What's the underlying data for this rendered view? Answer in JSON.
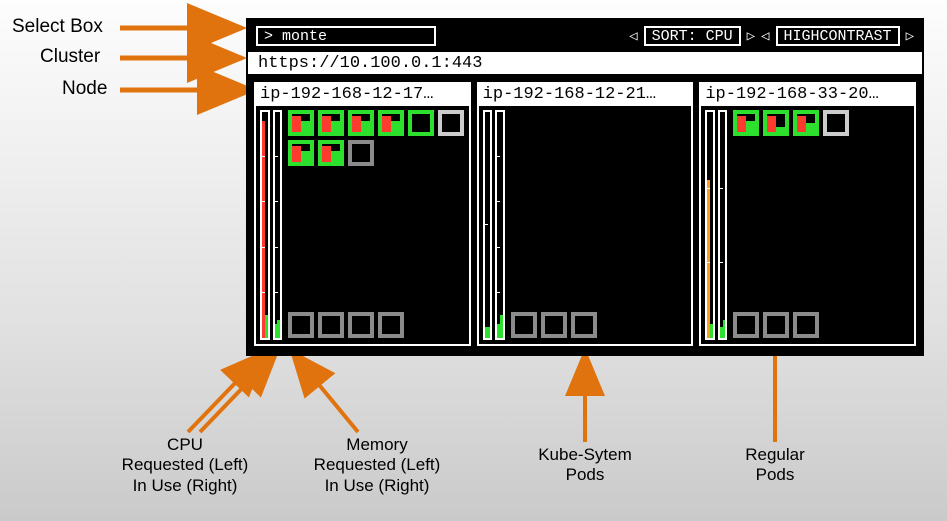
{
  "colors": {
    "arrow": "#e0730d",
    "green": "#2de02d",
    "white": "#ffffff",
    "grey": "#8b8b8b",
    "red": "#ff3b2f",
    "orange": "#ff9d1f",
    "black": "#000000"
  },
  "annotations": {
    "select_box": "Select Box",
    "cluster": "Cluster",
    "node": "Node",
    "cpu": "CPU\nRequested (Left)\nIn Use (Right)",
    "memory": "Memory\nRequested (Left)\nIn Use (Right)",
    "kube": "Kube-Sytem\nPods",
    "regular": "Regular\nPods"
  },
  "topbar": {
    "select_value": "> monte",
    "sort_label": "SORT: CPU",
    "contrast_label": "HIGHCONTRAST"
  },
  "cluster_url": "https://10.100.0.1:443",
  "nodes": [
    {
      "name": "ip-192-168-12-17…",
      "cpu": {
        "req_pct": 96,
        "use_pct": 10,
        "req_color": "#ff3b2f",
        "use_color": "#2de02d",
        "ticks": [
          20,
          40,
          60,
          80
        ]
      },
      "mem": {
        "req_pct": 6,
        "use_pct": 8,
        "req_color": "#2de02d",
        "use_color": "#2de02d",
        "ticks": [
          20,
          40,
          60,
          80
        ]
      },
      "top_pods": [
        {
          "border": "#2de02d",
          "left_h": 88,
          "left_c": "#ff3b2f",
          "right_h": 60,
          "right_c": "#2de02d"
        },
        {
          "border": "#2de02d",
          "left_h": 88,
          "left_c": "#ff3b2f",
          "right_h": 60,
          "right_c": "#2de02d"
        },
        {
          "border": "#2de02d",
          "left_h": 88,
          "left_c": "#ff3b2f",
          "right_h": 60,
          "right_c": "#2de02d"
        },
        {
          "border": "#2de02d",
          "left_h": 88,
          "left_c": "#ff3b2f",
          "right_h": 60,
          "right_c": "#2de02d"
        },
        {
          "border": "#2de02d",
          "left_h": 0,
          "left_c": "#ff3b2f",
          "right_h": 0,
          "right_c": "#2de02d"
        },
        {
          "border": "#cccccc",
          "left_h": 0,
          "left_c": "#ff3b2f",
          "right_h": 0,
          "right_c": "#2de02d"
        }
      ],
      "top_pods_row2": [
        {
          "border": "#2de02d",
          "left_h": 88,
          "left_c": "#ff3b2f",
          "right_h": 60,
          "right_c": "#2de02d"
        },
        {
          "border": "#2de02d",
          "left_h": 88,
          "left_c": "#ff3b2f",
          "right_h": 60,
          "right_c": "#2de02d"
        },
        {
          "border": "#8b8b8b",
          "left_h": 0,
          "left_c": "#ff3b2f",
          "right_h": 0,
          "right_c": "#2de02d"
        }
      ],
      "bottom_pods": [
        {
          "border": "#8b8b8b"
        },
        {
          "border": "#8b8b8b"
        },
        {
          "border": "#8b8b8b"
        },
        {
          "border": "#8b8b8b"
        }
      ]
    },
    {
      "name": "ip-192-168-12-21…",
      "cpu": {
        "req_pct": 5,
        "use_pct": 5,
        "req_color": "#2de02d",
        "use_color": "#2de02d",
        "ticks": [
          50
        ]
      },
      "mem": {
        "req_pct": 6,
        "use_pct": 10,
        "req_color": "#2de02d",
        "use_color": "#2de02d",
        "ticks": [
          20,
          40,
          60,
          80
        ]
      },
      "top_pods": [],
      "top_pods_row2": [],
      "bottom_pods": [
        {
          "border": "#8b8b8b"
        },
        {
          "border": "#8b8b8b"
        },
        {
          "border": "#8b8b8b"
        }
      ]
    },
    {
      "name": "ip-192-168-33-20…",
      "cpu": {
        "req_pct": 70,
        "use_pct": 6,
        "req_color": "#ff9d1f",
        "use_color": "#2de02d",
        "ticks": [
          33,
          66
        ]
      },
      "mem": {
        "req_pct": 5,
        "use_pct": 8,
        "req_color": "#2de02d",
        "use_color": "#2de02d",
        "ticks": [
          33,
          66
        ]
      },
      "top_pods": [
        {
          "border": "#2de02d",
          "left_h": 88,
          "left_c": "#ff3b2f",
          "right_h": 60,
          "right_c": "#2de02d"
        },
        {
          "border": "#2de02d",
          "left_h": 88,
          "left_c": "#ff3b2f",
          "right_h": 30,
          "right_c": "#2de02d"
        },
        {
          "border": "#2de02d",
          "left_h": 88,
          "left_c": "#ff3b2f",
          "right_h": 50,
          "right_c": "#2de02d"
        },
        {
          "border": "#cccccc",
          "left_h": 0,
          "left_c": "#ff3b2f",
          "right_h": 0,
          "right_c": "#2de02d"
        }
      ],
      "top_pods_row2": [],
      "bottom_pods": [
        {
          "border": "#8b8b8b"
        },
        {
          "border": "#8b8b8b"
        },
        {
          "border": "#8b8b8b"
        }
      ]
    }
  ]
}
